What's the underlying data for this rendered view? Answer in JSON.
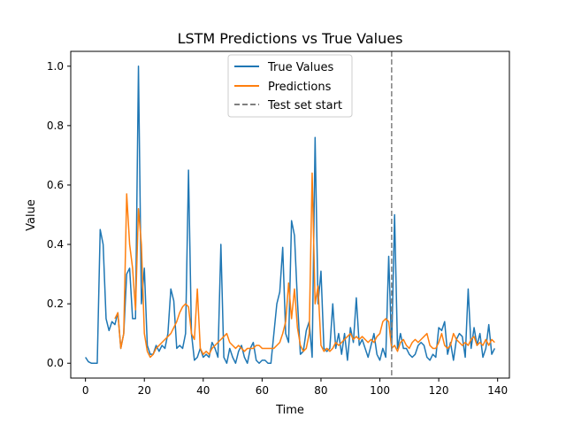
{
  "chart_data": {
    "type": "line",
    "title": "LSTM Predictions vs True Values",
    "xlabel": "Time",
    "ylabel": "Value",
    "xlim": [
      -5,
      144
    ],
    "ylim": [
      -0.05,
      1.05
    ],
    "xticks": [
      0,
      20,
      40,
      60,
      80,
      100,
      120,
      140
    ],
    "yticks": [
      0.0,
      0.2,
      0.4,
      0.6,
      0.8,
      1.0
    ],
    "xtick_labels": [
      "0",
      "20",
      "40",
      "60",
      "80",
      "100",
      "120",
      "140"
    ],
    "ytick_labels": [
      "0.0",
      "0.2",
      "0.4",
      "0.6",
      "0.8",
      "1.0"
    ],
    "legend_position": "top-center",
    "vline": {
      "x": 104,
      "name": "Test set start",
      "color": "#808080",
      "style": "dashed"
    },
    "series": [
      {
        "name": "True Values",
        "color": "#1f77b4",
        "x": [
          0,
          1,
          2,
          3,
          4,
          5,
          6,
          7,
          8,
          9,
          10,
          11,
          12,
          13,
          14,
          15,
          16,
          17,
          18,
          19,
          20,
          21,
          22,
          23,
          24,
          25,
          26,
          27,
          28,
          29,
          30,
          31,
          32,
          33,
          34,
          35,
          36,
          37,
          38,
          39,
          40,
          41,
          42,
          43,
          44,
          45,
          46,
          47,
          48,
          49,
          50,
          51,
          52,
          53,
          54,
          55,
          56,
          57,
          58,
          59,
          60,
          61,
          62,
          63,
          64,
          65,
          66,
          67,
          68,
          69,
          70,
          71,
          72,
          73,
          74,
          75,
          76,
          77,
          78,
          79,
          80,
          81,
          82,
          83,
          84,
          85,
          86,
          87,
          88,
          89,
          90,
          91,
          92,
          93,
          94,
          95,
          96,
          97,
          98,
          99,
          100,
          101,
          102,
          103,
          104,
          105,
          106,
          107,
          108,
          109,
          110,
          111,
          112,
          113,
          114,
          115,
          116,
          117,
          118,
          119,
          120,
          121,
          122,
          123,
          124,
          125,
          126,
          127,
          128,
          129,
          130,
          131,
          132,
          133,
          134,
          135,
          136,
          137,
          138,
          139
        ],
        "values": [
          0.02,
          0.005,
          0.0,
          0.0,
          0.0,
          0.45,
          0.4,
          0.15,
          0.11,
          0.14,
          0.13,
          0.17,
          0.05,
          0.1,
          0.3,
          0.32,
          0.15,
          0.15,
          1.0,
          0.2,
          0.32,
          0.06,
          0.03,
          0.03,
          0.06,
          0.04,
          0.06,
          0.05,
          0.1,
          0.25,
          0.21,
          0.05,
          0.06,
          0.05,
          0.1,
          0.65,
          0.1,
          0.01,
          0.02,
          0.05,
          0.02,
          0.03,
          0.02,
          0.07,
          0.05,
          0.02,
          0.4,
          0.02,
          0.0,
          0.05,
          0.02,
          0.0,
          0.04,
          0.06,
          0.02,
          0.0,
          0.05,
          0.07,
          0.01,
          0.0,
          0.01,
          0.01,
          0.0,
          0.0,
          0.1,
          0.2,
          0.24,
          0.39,
          0.1,
          0.07,
          0.48,
          0.43,
          0.21,
          0.03,
          0.04,
          0.11,
          0.14,
          0.02,
          0.76,
          0.2,
          0.31,
          0.05,
          0.04,
          0.05,
          0.2,
          0.05,
          0.1,
          0.03,
          0.1,
          0.01,
          0.12,
          0.07,
          0.22,
          0.06,
          0.08,
          0.05,
          0.02,
          0.06,
          0.1,
          0.03,
          0.01,
          0.05,
          0.02,
          0.36,
          0.05,
          0.5,
          0.05,
          0.1,
          0.05,
          0.05,
          0.03,
          0.02,
          0.03,
          0.06,
          0.07,
          0.06,
          0.02,
          0.01,
          0.03,
          0.02,
          0.12,
          0.11,
          0.14,
          0.03,
          0.07,
          0.01,
          0.08,
          0.1,
          0.09,
          0.02,
          0.25,
          0.05,
          0.12,
          0.06,
          0.1,
          0.02,
          0.05,
          0.13,
          0.03,
          0.05
        ]
      },
      {
        "name": "Predictions",
        "color": "#ff7f0e",
        "x": [
          10,
          11,
          12,
          13,
          14,
          15,
          16,
          17,
          18,
          19,
          20,
          21,
          22,
          23,
          24,
          25,
          26,
          27,
          28,
          29,
          30,
          31,
          32,
          33,
          34,
          35,
          36,
          37,
          38,
          39,
          40,
          41,
          42,
          43,
          44,
          45,
          46,
          47,
          48,
          49,
          50,
          51,
          52,
          53,
          54,
          55,
          56,
          57,
          58,
          59,
          60,
          61,
          62,
          63,
          64,
          65,
          66,
          67,
          68,
          69,
          70,
          71,
          72,
          73,
          74,
          75,
          76,
          77,
          78,
          79,
          80,
          81,
          82,
          83,
          84,
          85,
          86,
          87,
          88,
          89,
          90,
          91,
          92,
          93,
          94,
          95,
          96,
          97,
          98,
          99,
          100,
          101,
          102,
          103,
          104,
          105,
          106,
          107,
          108,
          109,
          110,
          111,
          112,
          113,
          114,
          115,
          116,
          117,
          118,
          119,
          120,
          121,
          122,
          123,
          124,
          125,
          126,
          127,
          128,
          129,
          130,
          131,
          132,
          133,
          134,
          135,
          136,
          137,
          138,
          139
        ],
        "values": [
          0.15,
          0.17,
          0.05,
          0.1,
          0.57,
          0.4,
          0.32,
          0.18,
          0.52,
          0.4,
          0.1,
          0.04,
          0.02,
          0.03,
          0.05,
          0.06,
          0.07,
          0.08,
          0.09,
          0.1,
          0.12,
          0.14,
          0.17,
          0.19,
          0.2,
          0.19,
          0.1,
          0.08,
          0.25,
          0.05,
          0.03,
          0.04,
          0.03,
          0.05,
          0.06,
          0.07,
          0.08,
          0.09,
          0.1,
          0.07,
          0.06,
          0.05,
          0.06,
          0.05,
          0.04,
          0.05,
          0.05,
          0.05,
          0.06,
          0.06,
          0.05,
          0.05,
          0.05,
          0.05,
          0.05,
          0.06,
          0.07,
          0.1,
          0.14,
          0.27,
          0.15,
          0.25,
          0.12,
          0.06,
          0.04,
          0.05,
          0.1,
          0.64,
          0.2,
          0.26,
          0.06,
          0.04,
          0.05,
          0.04,
          0.05,
          0.07,
          0.06,
          0.07,
          0.08,
          0.09,
          0.1,
          0.08,
          0.09,
          0.08,
          0.09,
          0.08,
          0.07,
          0.08,
          0.07,
          0.09,
          0.1,
          0.14,
          0.15,
          0.14,
          0.05,
          0.06,
          0.04,
          0.07,
          0.08,
          0.06,
          0.05,
          0.07,
          0.08,
          0.07,
          0.08,
          0.09,
          0.1,
          0.06,
          0.05,
          0.05,
          0.07,
          0.1,
          0.06,
          0.05,
          0.06,
          0.1,
          0.08,
          0.07,
          0.06,
          0.07,
          0.06,
          0.08,
          0.09,
          0.06,
          0.07,
          0.06,
          0.08,
          0.06,
          0.08,
          0.07
        ]
      }
    ]
  }
}
